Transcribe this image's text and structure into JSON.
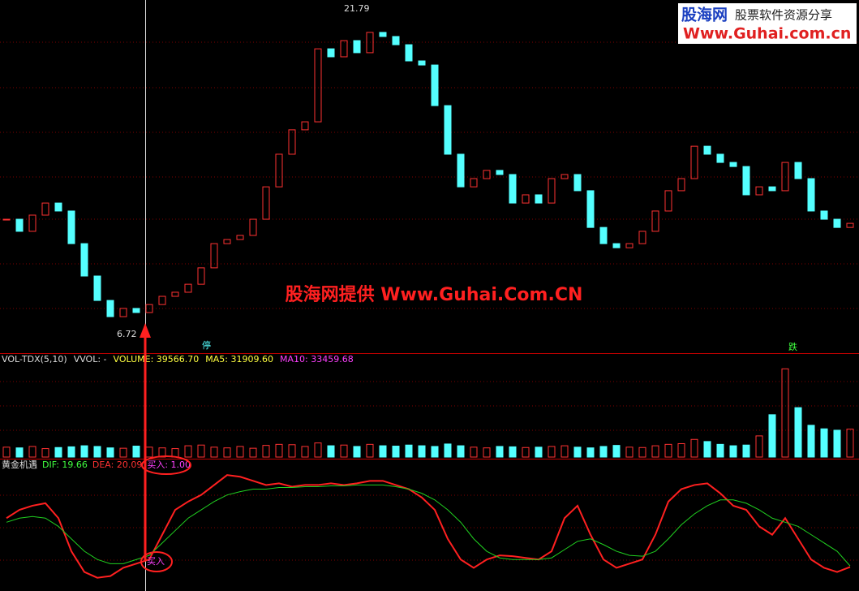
{
  "chart_data": [
    {
      "type": "candlestick",
      "name": "price",
      "values": [
        12.05,
        11.49,
        12.24,
        12.8,
        12.43,
        10.92,
        9.42,
        8.29,
        7.54,
        7.92,
        7.73,
        8.1,
        8.48,
        8.67,
        9.04,
        9.8,
        10.92,
        11.11,
        11.3,
        12.05,
        13.55,
        15.06,
        16.19,
        16.56,
        19.94,
        19.57,
        20.32,
        19.76,
        20.7,
        20.51,
        20.13,
        19.38,
        19.19,
        17.31,
        15.06,
        13.55,
        13.93,
        14.31,
        14.12,
        12.8,
        13.18,
        12.8,
        13.93,
        14.12,
        13.37,
        11.67,
        10.92,
        10.73,
        10.92,
        11.49,
        12.43,
        13.37,
        13.93,
        15.43,
        15.06,
        14.68,
        14.49,
        13.18,
        13.55,
        13.37,
        14.68,
        13.93,
        12.43,
        12.05,
        11.67,
        11.86
      ],
      "ylim": [
        5.85,
        22.2
      ],
      "annotations": [
        {
          "text": "21.79",
          "value": 21.79
        },
        {
          "text": "6.72",
          "value": 6.72
        }
      ],
      "markers": [
        "停",
        "跌"
      ],
      "watermark": "股海网提供 Www.Guhai.Com.CN",
      "logo": {
        "name": "股海网",
        "slogan": "股票软件资源分享",
        "url": "Www.Guhai.com.cn"
      }
    },
    {
      "type": "bar",
      "name": "volume",
      "legend_texts": [
        "VOL-TDX(5,10)",
        "VVOL: -",
        "VOLUME: 39566.70",
        "MA5: 31909.60",
        "MA10: 33459.68"
      ],
      "values": [
        14000,
        13000,
        15000,
        12000,
        13500,
        14500,
        16000,
        15000,
        13000,
        12500,
        15500,
        14000,
        13000,
        12000,
        16000,
        17000,
        14000,
        13000,
        15000,
        12500,
        16500,
        18000,
        17500,
        15000,
        20000,
        16000,
        17000,
        15000,
        18000,
        16000,
        15500,
        17000,
        16000,
        15000,
        18500,
        16000,
        14000,
        13000,
        15000,
        14500,
        13500,
        14000,
        15000,
        16000,
        14000,
        13000,
        15000,
        16500,
        14000,
        13500,
        16000,
        18000,
        19000,
        25000,
        22000,
        18000,
        16000,
        17000,
        30000,
        60000,
        125000,
        70000,
        45000,
        40000,
        38000,
        39566.7
      ],
      "ylim": [
        0,
        130000
      ]
    },
    {
      "type": "line",
      "name": "golden-chance",
      "legend_texts": [
        "黄金机遇",
        "DIF: 19.66",
        "DEA: 20.09",
        "买入: 1.00"
      ],
      "buy_label": "买入",
      "series": [
        {
          "name": "DIF",
          "color": "#ff2020",
          "values": [
            39.33,
            42.67,
            44.33,
            45.33,
            39.33,
            26,
            17.67,
            15.33,
            16,
            19.33,
            21,
            22.67,
            32.67,
            42.67,
            46,
            48.67,
            52.67,
            56.67,
            56,
            54.33,
            52.67,
            53.33,
            52,
            52.67,
            52.67,
            53.33,
            52.67,
            53.33,
            54.33,
            54.33,
            52.67,
            51,
            47.67,
            42.67,
            31,
            22.67,
            19.33,
            22.67,
            24.33,
            24,
            23.33,
            22.67,
            26,
            39.33,
            44.33,
            32.67,
            22.67,
            19.33,
            21,
            22.67,
            32.67,
            46,
            51,
            52.67,
            53.33,
            49.33,
            44.33,
            42.67,
            36,
            32.67,
            39.33,
            31,
            22.67,
            19.33,
            17.67,
            19.66
          ]
        },
        {
          "name": "DEA",
          "color": "#20d020",
          "values": [
            37.67,
            39.33,
            40,
            39.33,
            36,
            31,
            26,
            22.67,
            21,
            21,
            22.67,
            24.33,
            29.33,
            34.33,
            39.33,
            42.67,
            46,
            48.67,
            50,
            51,
            51,
            51.67,
            51.67,
            52,
            52,
            52.33,
            52.33,
            52.67,
            52.67,
            52.67,
            52,
            51,
            49.33,
            46.67,
            42.67,
            37.67,
            31,
            26,
            23.33,
            22.67,
            22.67,
            22.67,
            23.33,
            26.67,
            30,
            31,
            28.67,
            26,
            24.33,
            24,
            26,
            31,
            36.67,
            41,
            44.33,
            46.67,
            46.67,
            45.33,
            42.67,
            39.33,
            37.67,
            36,
            32.67,
            29.33,
            26,
            20.09
          ]
        }
      ],
      "ylim": [
        10,
        60
      ]
    }
  ]
}
